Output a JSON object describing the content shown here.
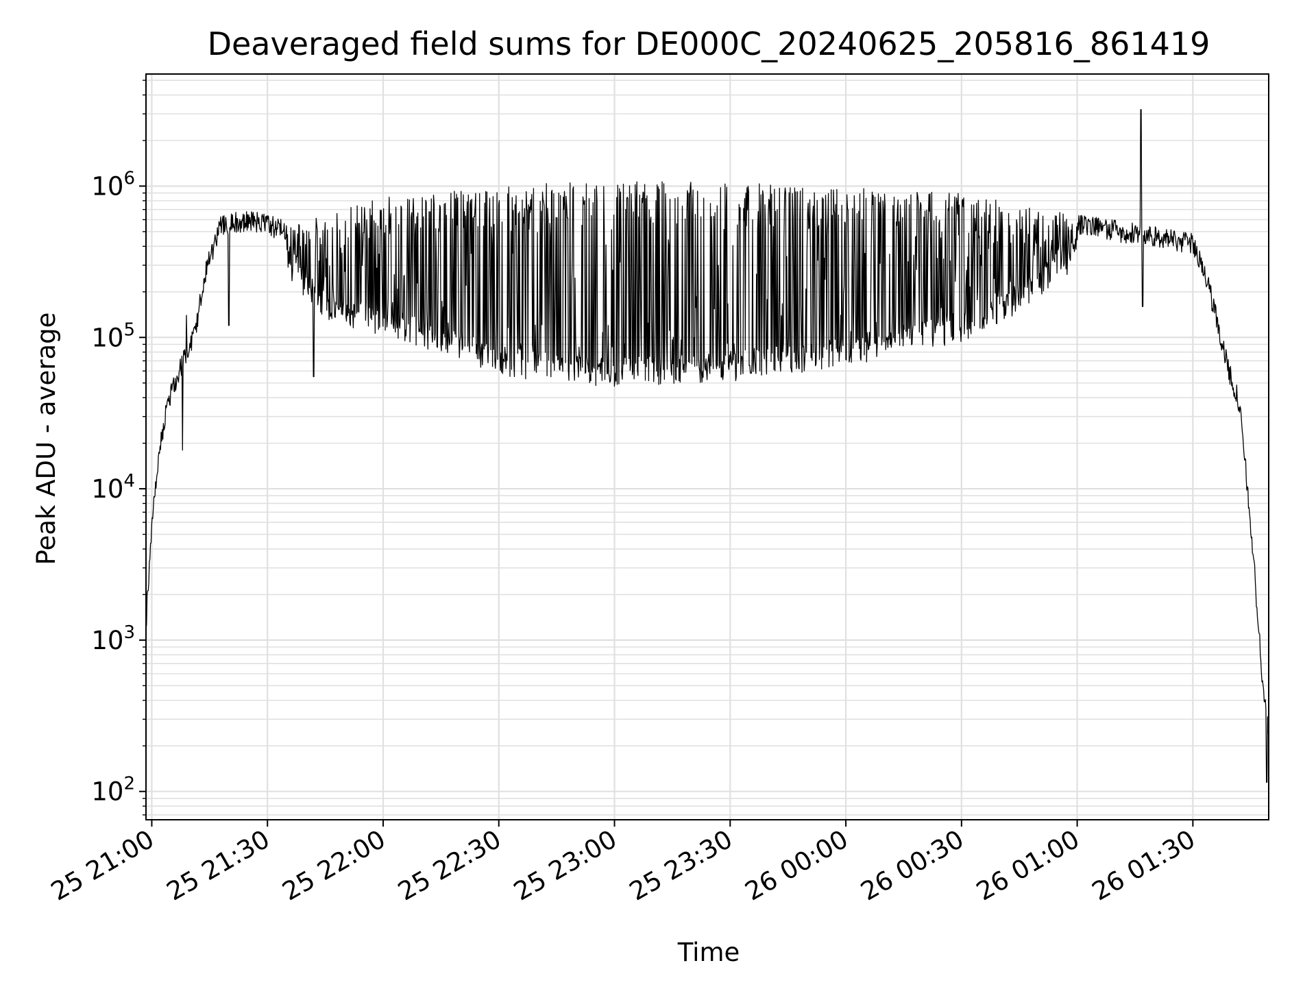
{
  "chart_data": {
    "type": "line",
    "title": "Deaveraged field sums for DE000C_20240625_205816_861419",
    "xlabel": "Time",
    "ylabel": "Peak ADU - average",
    "y_scale": "log",
    "ylim": [
      65,
      5500000
    ],
    "xlim": [
      "2024-06-25 20:58:30",
      "2024-06-26 01:49:40"
    ],
    "grid": true,
    "line_color": "#000000",
    "grid_color": "#e0e0e0",
    "x_ticks": [
      {
        "t": "2024-06-25 21:00",
        "label": "25 21:00"
      },
      {
        "t": "2024-06-25 21:30",
        "label": "25 21:30"
      },
      {
        "t": "2024-06-25 22:00",
        "label": "25 22:00"
      },
      {
        "t": "2024-06-25 22:30",
        "label": "25 22:30"
      },
      {
        "t": "2024-06-25 23:00",
        "label": "25 23:00"
      },
      {
        "t": "2024-06-25 23:30",
        "label": "25 23:30"
      },
      {
        "t": "2024-06-26 00:00",
        "label": "26 00:00"
      },
      {
        "t": "2024-06-26 00:30",
        "label": "26 00:30"
      },
      {
        "t": "2024-06-26 01:00",
        "label": "26 01:00"
      },
      {
        "t": "2024-06-26 01:30",
        "label": "26 01:30"
      }
    ],
    "y_ticks": [
      {
        "value": 100,
        "base": "10",
        "exp": "2"
      },
      {
        "value": 1000,
        "base": "10",
        "exp": "3"
      },
      {
        "value": 10000,
        "base": "10",
        "exp": "4"
      },
      {
        "value": 100000,
        "base": "10",
        "exp": "5"
      },
      {
        "value": 1000000,
        "base": "10",
        "exp": "6"
      }
    ],
    "envelope": {
      "note_units": "time, Peak ADU - average",
      "upper": [
        [
          "2024-06-25 20:58:30",
          1400
        ],
        [
          "2024-06-25 21:00:00",
          6000
        ],
        [
          "2024-06-25 21:02:00",
          20000
        ],
        [
          "2024-06-25 21:04:00",
          40000
        ],
        [
          "2024-06-25 21:07:00",
          65000
        ],
        [
          "2024-06-25 21:11:00",
          110000
        ],
        [
          "2024-06-25 21:14:00",
          300000
        ],
        [
          "2024-06-25 21:18:00",
          600000
        ],
        [
          "2024-06-25 21:25:00",
          650000
        ],
        [
          "2024-06-25 21:35:00",
          550000
        ],
        [
          "2024-06-25 21:45:00",
          650000
        ],
        [
          "2024-06-25 22:00:00",
          800000
        ],
        [
          "2024-06-25 22:30:00",
          950000
        ],
        [
          "2024-06-25 23:00:00",
          1050000
        ],
        [
          "2024-06-25 23:30:00",
          1000000
        ],
        [
          "2024-06-26 00:00:00",
          950000
        ],
        [
          "2024-06-26 00:30:00",
          850000
        ],
        [
          "2024-06-26 00:50:00",
          700000
        ],
        [
          "2024-06-26 01:10:00",
          550000
        ],
        [
          "2024-06-26 01:20:00",
          500000
        ],
        [
          "2024-06-26 01:30:00",
          450000
        ],
        [
          "2024-06-26 01:33:00",
          300000
        ],
        [
          "2024-06-26 01:36:00",
          150000
        ],
        [
          "2024-06-26 01:39:00",
          70000
        ],
        [
          "2024-06-26 01:42:00",
          40000
        ],
        [
          "2024-06-26 01:44:00",
          12000
        ],
        [
          "2024-06-26 01:46:00",
          3000
        ],
        [
          "2024-06-26 01:48:00",
          600
        ],
        [
          "2024-06-26 01:49:40",
          250
        ]
      ],
      "lower": [
        [
          "2024-06-25 21:35:00",
          300000
        ],
        [
          "2024-06-25 21:45:00",
          150000
        ],
        [
          "2024-06-25 22:00:00",
          120000
        ],
        [
          "2024-06-25 22:15:00",
          90000
        ],
        [
          "2024-06-25 22:30:00",
          65000
        ],
        [
          "2024-06-25 23:00:00",
          55000
        ],
        [
          "2024-06-25 23:30:00",
          60000
        ],
        [
          "2024-06-26 00:00:00",
          75000
        ],
        [
          "2024-06-26 00:30:00",
          110000
        ],
        [
          "2024-06-26 00:50:00",
          200000
        ],
        [
          "2024-06-26 01:00:00",
          350000
        ]
      ]
    },
    "features": [
      {
        "t": "2024-06-25 21:08:00",
        "value": 18000
      },
      {
        "t": "2024-06-25 21:09:00",
        "value": 140000
      },
      {
        "t": "2024-06-25 21:20:00",
        "value": 120000
      },
      {
        "t": "2024-06-25 21:42:00",
        "value": 55000
      },
      {
        "t": "2024-06-26 01:16:30",
        "value": 3200000
      },
      {
        "t": "2024-06-26 01:17:00",
        "value": 160000
      },
      {
        "t": "2024-06-26 01:49:10",
        "value": 115
      }
    ]
  }
}
